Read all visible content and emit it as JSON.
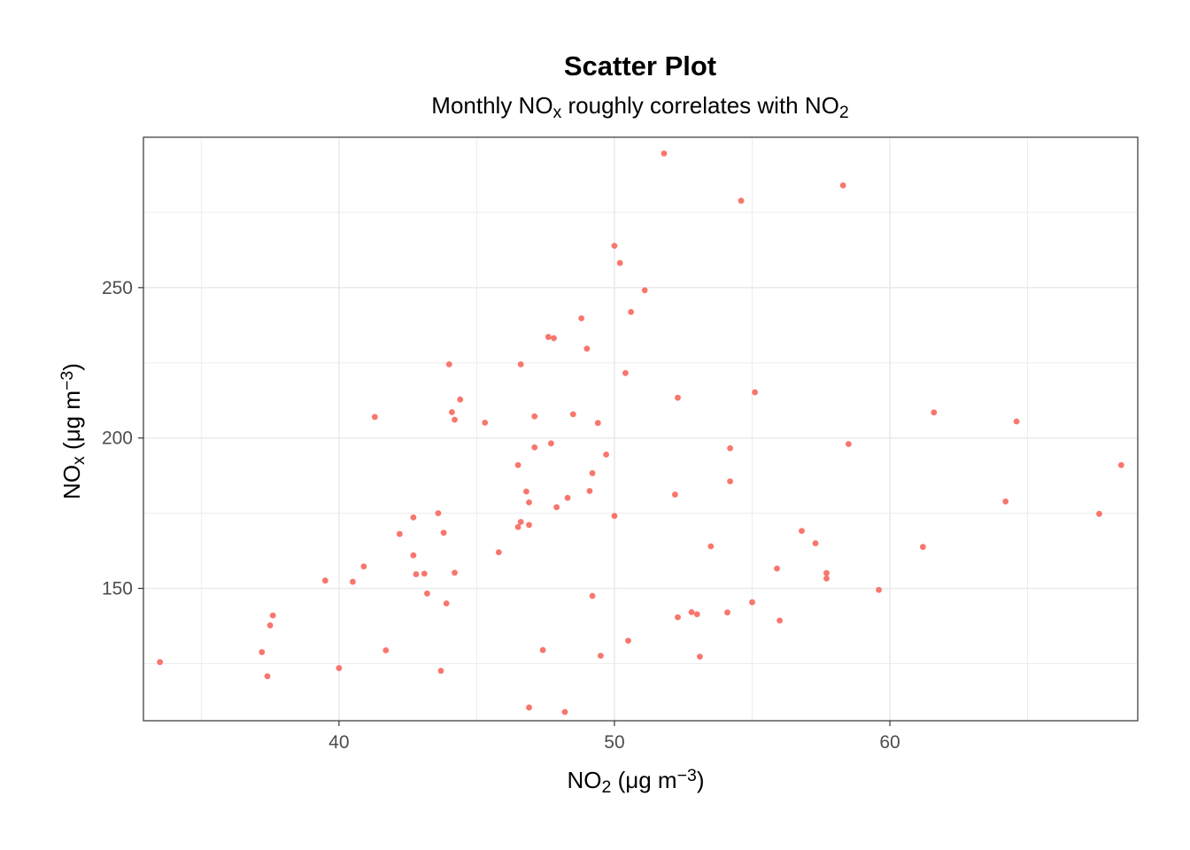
{
  "chart_data": {
    "type": "scatter",
    "title": "Scatter Plot",
    "subtitle": {
      "parts": [
        {
          "text": "Monthly NO",
          "script": "normal"
        },
        {
          "text": "x",
          "script": "sub"
        },
        {
          "text": " roughly correlates with NO",
          "script": "normal"
        },
        {
          "text": "2",
          "script": "sub"
        }
      ]
    },
    "xlabel": {
      "parts": [
        {
          "text": "NO",
          "script": "normal"
        },
        {
          "text": "2",
          "script": "sub"
        },
        {
          "text": " (μg m",
          "script": "normal"
        },
        {
          "text": "−3",
          "script": "sup"
        },
        {
          "text": ")",
          "script": "normal"
        }
      ]
    },
    "ylabel": {
      "parts": [
        {
          "text": "NO",
          "script": "normal"
        },
        {
          "text": "x",
          "script": "sub"
        },
        {
          "text": " (μg m",
          "script": "normal"
        },
        {
          "text": "−3",
          "script": "sup"
        },
        {
          "text": ")",
          "script": "normal"
        }
      ]
    },
    "xlim": [
      32.9,
      69.0
    ],
    "ylim": [
      106.0,
      300.0
    ],
    "x_major_ticks": [
      40,
      50,
      60
    ],
    "x_minor_ticks": [
      35,
      45,
      55,
      65
    ],
    "y_major_ticks": [
      150,
      200,
      250
    ],
    "y_minor_ticks": [
      125,
      175,
      225,
      275
    ],
    "grid": true,
    "legend": "none",
    "point_color": "#F8766D",
    "gridline_color": "#ebebeb",
    "panel_border_color": "#333333",
    "points": [
      [
        33.5,
        125.5
      ],
      [
        37.2,
        128.8
      ],
      [
        37.4,
        120.8
      ],
      [
        37.5,
        137.7
      ],
      [
        37.6,
        141.0
      ],
      [
        39.5,
        152.6
      ],
      [
        40.0,
        123.5
      ],
      [
        40.5,
        152.2
      ],
      [
        40.9,
        157.3
      ],
      [
        41.3,
        207.0
      ],
      [
        41.7,
        129.4
      ],
      [
        42.2,
        168.1
      ],
      [
        42.7,
        173.6
      ],
      [
        42.7,
        161.0
      ],
      [
        42.8,
        154.7
      ],
      [
        43.1,
        154.9
      ],
      [
        43.2,
        148.3
      ],
      [
        43.6,
        175.0
      ],
      [
        43.7,
        122.6
      ],
      [
        43.8,
        168.5
      ],
      [
        43.9,
        145.0
      ],
      [
        44.0,
        224.5
      ],
      [
        44.1,
        208.6
      ],
      [
        44.2,
        155.2
      ],
      [
        44.2,
        206.1
      ],
      [
        44.4,
        212.8
      ],
      [
        45.3,
        205.1
      ],
      [
        45.8,
        162.0
      ],
      [
        46.5,
        191.0
      ],
      [
        46.5,
        170.4
      ],
      [
        46.6,
        172.1
      ],
      [
        46.6,
        224.5
      ],
      [
        46.8,
        182.2
      ],
      [
        46.9,
        171.1
      ],
      [
        46.9,
        178.6
      ],
      [
        46.9,
        110.4
      ],
      [
        47.1,
        207.2
      ],
      [
        47.1,
        196.9
      ],
      [
        47.4,
        129.5
      ],
      [
        47.6,
        233.6
      ],
      [
        47.7,
        198.2
      ],
      [
        47.8,
        233.2
      ],
      [
        47.9,
        177.0
      ],
      [
        48.2,
        108.9
      ],
      [
        48.3,
        180.1
      ],
      [
        48.5,
        207.9
      ],
      [
        48.8,
        239.8
      ],
      [
        49.0,
        229.7
      ],
      [
        49.1,
        182.4
      ],
      [
        49.2,
        147.5
      ],
      [
        49.2,
        188.3
      ],
      [
        49.4,
        205.0
      ],
      [
        49.5,
        127.6
      ],
      [
        49.7,
        194.5
      ],
      [
        50.0,
        263.9
      ],
      [
        50.0,
        174.1
      ],
      [
        50.2,
        258.2
      ],
      [
        50.4,
        221.6
      ],
      [
        50.5,
        132.6
      ],
      [
        50.6,
        241.9
      ],
      [
        51.1,
        249.1
      ],
      [
        51.8,
        294.6
      ],
      [
        52.2,
        181.2
      ],
      [
        52.3,
        140.4
      ],
      [
        52.3,
        213.4
      ],
      [
        52.8,
        142.1
      ],
      [
        53.0,
        141.4
      ],
      [
        53.1,
        127.3
      ],
      [
        53.5,
        164.0
      ],
      [
        54.1,
        142.0
      ],
      [
        54.2,
        185.6
      ],
      [
        54.2,
        196.6
      ],
      [
        54.6,
        278.9
      ],
      [
        55.0,
        145.4
      ],
      [
        55.1,
        215.2
      ],
      [
        55.9,
        156.6
      ],
      [
        56.0,
        139.3
      ],
      [
        56.8,
        169.1
      ],
      [
        57.3,
        165.0
      ],
      [
        57.7,
        155.1
      ],
      [
        57.7,
        153.3
      ],
      [
        58.3,
        284.0
      ],
      [
        58.5,
        198.0
      ],
      [
        59.6,
        149.5
      ],
      [
        61.2,
        163.8
      ],
      [
        61.6,
        208.5
      ],
      [
        64.2,
        178.9
      ],
      [
        64.6,
        205.5
      ],
      [
        67.6,
        174.8
      ],
      [
        68.4,
        191.0
      ]
    ]
  }
}
